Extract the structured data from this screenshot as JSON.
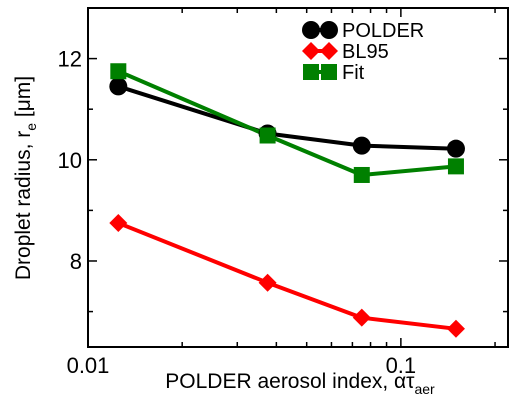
{
  "chart_data": {
    "type": "line",
    "title": "",
    "xlabel": "POLDER aerosol index, ατ",
    "xlabel_sub": "aer",
    "ylabel": "Droplet radius, r",
    "ylabel_sub": "e",
    "ylabel_unit": " [μm]",
    "x_scale": "log",
    "xlim": [
      0.01,
      0.22
    ],
    "ylim": [
      6.3,
      13.0
    ],
    "x_ticks": [
      {
        "value": 0.01,
        "label": "0.01"
      },
      {
        "value": 0.1,
        "label": "0.1"
      }
    ],
    "y_ticks": [
      {
        "value": 8,
        "label": "8"
      },
      {
        "value": 10,
        "label": "10"
      },
      {
        "value": 12,
        "label": "12"
      }
    ],
    "grid": false,
    "legend": "top-right",
    "series": [
      {
        "name": "POLDER",
        "color": "#000000",
        "marker": "circle",
        "x": [
          0.0125,
          0.0375,
          0.075,
          0.15
        ],
        "y": [
          11.45,
          10.52,
          10.28,
          10.22
        ]
      },
      {
        "name": "BL95",
        "color": "#ff0000",
        "marker": "diamond",
        "x": [
          0.0125,
          0.0375,
          0.075,
          0.15
        ],
        "y": [
          8.75,
          7.57,
          6.88,
          6.66
        ]
      },
      {
        "name": "Fit",
        "color": "#008000",
        "marker": "square",
        "x": [
          0.0125,
          0.0375,
          0.075,
          0.15
        ],
        "y": [
          11.75,
          10.48,
          9.7,
          9.87
        ]
      }
    ]
  }
}
